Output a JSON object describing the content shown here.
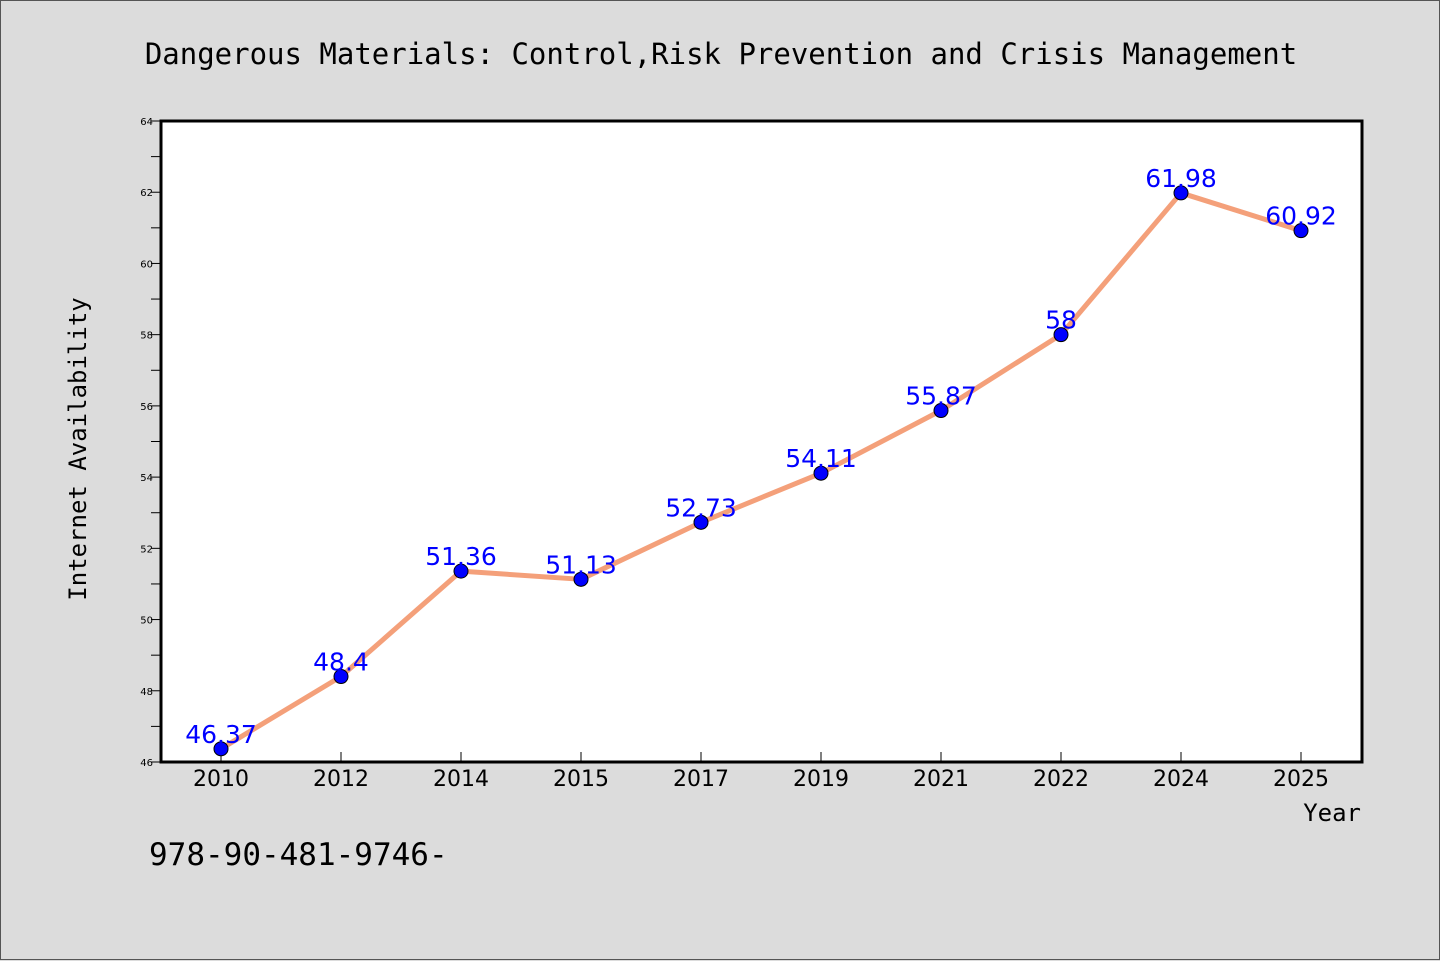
{
  "chart_data": {
    "type": "line",
    "title": "Dangerous Materials: Control,Risk Prevention and Crisis Management",
    "xlabel": "Year",
    "ylabel": "Internet Availability",
    "categories": [
      "2010",
      "2012",
      "2014",
      "2015",
      "2017",
      "2019",
      "2021",
      "2022",
      "2024",
      "2025"
    ],
    "values": [
      46.37,
      48.4,
      51.36,
      51.13,
      52.73,
      54.11,
      55.87,
      58,
      61.98,
      60.92
    ],
    "data_labels": [
      "46.37",
      "48.4",
      "51.36",
      "51.13",
      "52.73",
      "54.11",
      "55.87",
      "58",
      "61.98",
      "60.92"
    ],
    "ylim": [
      46,
      64
    ],
    "yticks": [
      "46",
      "48",
      "50",
      "52",
      "54",
      "56",
      "58",
      "60",
      "62",
      "64"
    ],
    "grid": false,
    "line_color": "#f4a07a",
    "marker_color": "#0000ff",
    "label_color": "#0000ff",
    "plot_background": "#ffffff",
    "page_background": "#dcdcdc"
  },
  "footnote": "978-90-481-9746-"
}
